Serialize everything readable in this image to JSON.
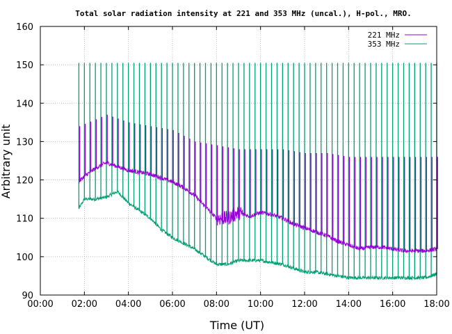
{
  "chart_data": {
    "type": "line",
    "title": "Total solar radiation intensity at 221 and 353 MHz (uncal.), H-pol., MRO.",
    "xlabel": "Time (UT)",
    "ylabel": "Arbitrary unit",
    "xlim": [
      0,
      18
    ],
    "ylim": [
      90,
      160
    ],
    "x_ticks": [
      "00:00",
      "02:00",
      "04:00",
      "06:00",
      "08:00",
      "10:00",
      "12:00",
      "14:00",
      "16:00",
      "18:00"
    ],
    "y_ticks": [
      "90",
      "100",
      "110",
      "120",
      "130",
      "140",
      "150",
      "160"
    ],
    "grid": true,
    "legend_position": "top-right",
    "series": [
      {
        "name": "221 MHz",
        "color": "#9400d3",
        "x": [
          1.75,
          2.0,
          2.5,
          3.0,
          3.5,
          4.0,
          4.5,
          5.0,
          5.5,
          6.0,
          6.5,
          7.0,
          7.5,
          8.0,
          8.5,
          9.0,
          9.5,
          10.0,
          10.5,
          11.0,
          11.5,
          12.0,
          12.5,
          13.0,
          13.5,
          14.0,
          14.5,
          15.0,
          15.5,
          16.0,
          16.5,
          17.0,
          17.5,
          18.0
        ],
        "values": [
          119.5,
          121.0,
          123.0,
          124.5,
          123.5,
          122.5,
          122.0,
          121.5,
          120.5,
          119.5,
          118.0,
          116.0,
          113.0,
          110.0,
          110.0,
          111.5,
          110.5,
          111.5,
          111.0,
          110.0,
          108.5,
          107.5,
          106.5,
          105.5,
          104.0,
          103.0,
          102.0,
          102.5,
          102.5,
          102.0,
          101.5,
          101.5,
          101.5,
          102.0
        ]
      },
      {
        "name": "353 MHz",
        "color": "#009e73",
        "x": [
          1.75,
          2.0,
          2.5,
          3.0,
          3.5,
          4.0,
          4.5,
          5.0,
          5.5,
          6.0,
          6.5,
          7.0,
          7.5,
          8.0,
          8.5,
          9.0,
          9.5,
          10.0,
          10.5,
          11.0,
          11.5,
          12.0,
          12.5,
          13.0,
          13.5,
          14.0,
          14.5,
          15.0,
          15.5,
          16.0,
          16.5,
          17.0,
          17.5,
          18.0
        ],
        "values": [
          112.5,
          115.0,
          115.0,
          115.5,
          117.0,
          114.0,
          112.0,
          110.0,
          107.0,
          105.0,
          103.5,
          102.0,
          100.0,
          98.0,
          98.0,
          99.0,
          99.0,
          99.0,
          98.5,
          98.0,
          97.0,
          96.0,
          96.0,
          95.5,
          95.0,
          94.5,
          94.5,
          94.5,
          94.5,
          94.5,
          94.5,
          94.5,
          94.5,
          95.5
        ]
      }
    ],
    "spikes": {
      "221 MHz": {
        "interval_hours": 0.25,
        "start": 1.75,
        "end": 18.0,
        "peaks": [
          [
            1.75,
            134
          ],
          [
            3.0,
            137
          ],
          [
            4.0,
            135
          ],
          [
            5.0,
            134
          ],
          [
            6.0,
            133
          ],
          [
            7.0,
            130
          ],
          [
            8.0,
            129
          ],
          [
            9.0,
            128
          ],
          [
            10.0,
            128
          ],
          [
            11.0,
            128
          ],
          [
            12.0,
            127
          ],
          [
            13.0,
            127
          ],
          [
            14.0,
            126
          ],
          [
            15.0,
            126
          ],
          [
            16.0,
            126
          ],
          [
            17.0,
            126
          ],
          [
            18.0,
            126
          ]
        ]
      },
      "353 MHz": {
        "interval_hours": 0.25,
        "start": 1.75,
        "end": 18.0,
        "peak": 150.5
      }
    }
  },
  "colors": {
    "axis": "#000000",
    "grid": "#a0a0a0",
    "series_221": "#9400d3",
    "series_353": "#009e73"
  }
}
